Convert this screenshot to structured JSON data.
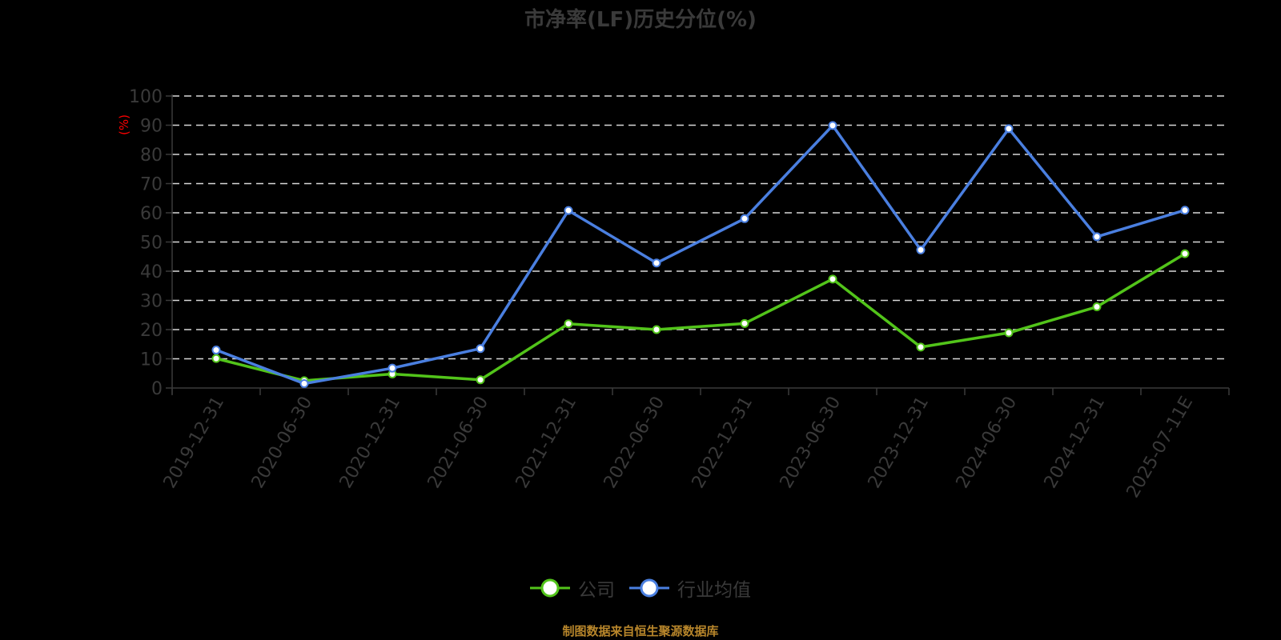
{
  "title": "市净率(LF)历史分位(%)",
  "source": "制图数据来自恒生聚源数据库",
  "colors": {
    "company": "#52c41a",
    "industry": "#4a7fe0",
    "unit": "#ff0000",
    "axis": "#3a3a3a",
    "grid": "#d9d9d9",
    "source": "#b8862b"
  },
  "legend": [
    {
      "name": "公司",
      "color": "#52c41a"
    },
    {
      "name": "行业均值",
      "color": "#4a7fe0"
    }
  ],
  "chart_data": {
    "type": "line",
    "title": "市净率(LF)历史分位(%)",
    "xlabel": "",
    "ylabel": "(%)",
    "ylim": [
      0,
      100
    ],
    "yticks": [
      0,
      10,
      20,
      30,
      40,
      50,
      60,
      70,
      80,
      90,
      100
    ],
    "grid": true,
    "legend_position": "bottom",
    "categories": [
      "2019-12-31",
      "2020-06-30",
      "2020-12-31",
      "2021-06-30",
      "2021-12-31",
      "2022-06-30",
      "2022-12-31",
      "2023-06-30",
      "2023-12-31",
      "2024-06-30",
      "2024-12-31",
      "2025-07-11E"
    ],
    "series": [
      {
        "name": "公司",
        "values": [
          10.1,
          2.5,
          4.8,
          2.8,
          22.0,
          20.0,
          22.1,
          37.3,
          14.0,
          18.9,
          27.8,
          46.0
        ]
      },
      {
        "name": "行业均值",
        "values": [
          13.0,
          1.5,
          6.8,
          13.5,
          60.8,
          42.8,
          58.0,
          89.9,
          47.3,
          88.8,
          51.8,
          60.9
        ]
      }
    ],
    "source": "制图数据来自恒生聚源数据库"
  }
}
